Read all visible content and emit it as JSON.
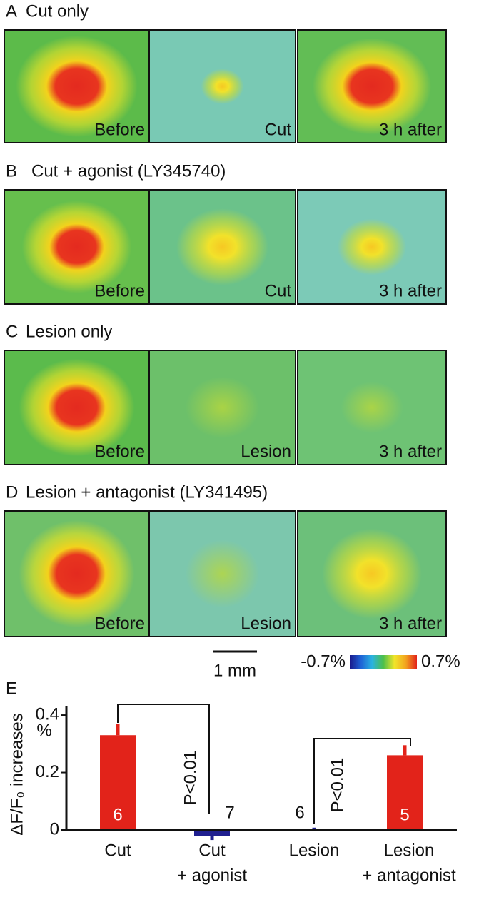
{
  "panels": [
    {
      "label": "A",
      "title": "Cut only",
      "images": [
        "Before",
        "Cut",
        "3 h after"
      ]
    },
    {
      "label": "B",
      "title": "Cut + agonist (LY345740)",
      "images": [
        "Before",
        "Cut",
        "3 h after"
      ]
    },
    {
      "label": "C",
      "title": "Lesion only",
      "images": [
        "Before",
        "Lesion",
        "3 h after"
      ]
    },
    {
      "label": "D",
      "title": "Lesion + antagonist (LY341495)",
      "images": [
        "Before",
        "Lesion",
        "3 h after"
      ]
    }
  ],
  "scale_bar": "1 mm",
  "colorbar": {
    "min": "-0.7%",
    "max": "0.7%"
  },
  "chart_data": {
    "type": "bar",
    "panel_label": "E",
    "y_label": "ΔF/F₀ increases",
    "y_unit": "%",
    "categories": [
      [
        "Cut"
      ],
      [
        "Cut",
        "+ agonist"
      ],
      [
        "Lesion"
      ],
      [
        "Lesion",
        "+ antagonist"
      ]
    ],
    "values": [
      0.33,
      -0.02,
      0.005,
      0.26
    ],
    "errors": [
      0.04,
      0.015,
      0.003,
      0.035
    ],
    "colors": [
      "#e2231a",
      "#1f1f8f",
      "#1f1f8f",
      "#e2231a"
    ],
    "n": [
      "6",
      "7",
      "6",
      "5"
    ],
    "annotations": [
      "P<0.01",
      "P<0.01"
    ],
    "ylim": [
      0,
      0.43
    ],
    "yticks": [
      0,
      0.2,
      0.4
    ]
  }
}
